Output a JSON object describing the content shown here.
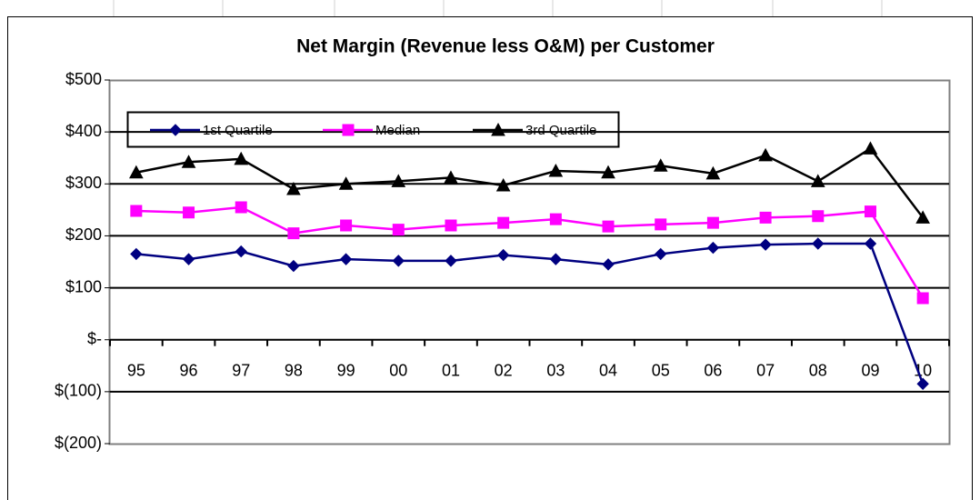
{
  "chart_data": {
    "type": "line",
    "title": "Net Margin (Revenue less O&M) per Customer",
    "categories": [
      "95",
      "96",
      "97",
      "98",
      "99",
      "00",
      "01",
      "02",
      "03",
      "04",
      "05",
      "06",
      "07",
      "08",
      "09",
      "10"
    ],
    "series": [
      {
        "name": "1st Quartile",
        "color": "#000080",
        "marker": "diamond",
        "values": [
          165,
          155,
          170,
          142,
          155,
          152,
          152,
          163,
          155,
          145,
          165,
          177,
          183,
          185,
          185,
          -85
        ]
      },
      {
        "name": "Median",
        "color": "#ff00ff",
        "marker": "square",
        "values": [
          248,
          245,
          255,
          205,
          220,
          212,
          220,
          225,
          232,
          218,
          222,
          225,
          235,
          238,
          247,
          80
        ]
      },
      {
        "name": "3rd Quartile",
        "color": "#000000",
        "marker": "triangle",
        "values": [
          322,
          342,
          348,
          290,
          300,
          305,
          312,
          297,
          325,
          322,
          335,
          320,
          355,
          305,
          368,
          235
        ]
      }
    ],
    "ylim": [
      -200,
      500
    ],
    "yticks": [
      {
        "value": -200,
        "label": "$(200)"
      },
      {
        "value": -100,
        "label": "$(100)"
      },
      {
        "value": 0,
        "label": "$-"
      },
      {
        "value": 100,
        "label": "$100"
      },
      {
        "value": 200,
        "label": "$200"
      },
      {
        "value": 300,
        "label": "$300"
      },
      {
        "value": 400,
        "label": "$400"
      },
      {
        "value": 500,
        "label": "$500"
      }
    ],
    "grid": true,
    "legend": "top-left"
  }
}
